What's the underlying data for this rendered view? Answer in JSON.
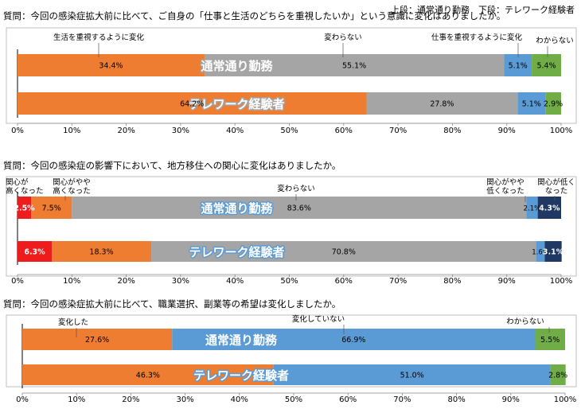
{
  "header_note": "上段：通常通り勤務　下段：テレワーク経験者",
  "colors": {
    "red": "#ee1c1c",
    "orange": "#ee7d31",
    "gray": "#a5a5a5",
    "blue": "#5b9bd5",
    "green": "#70ad47",
    "navy": "#203864",
    "bar_label": "#ffffff",
    "panel_border": "#bfbfbf"
  },
  "chart_data": [
    {
      "type": "bar",
      "orientation": "horizontal",
      "stacked": "percent",
      "title": "質問：今回の感染症拡大前に比べて、ご自身の「仕事と生活のどちらを重視したいか」という意識に変化はありましたか。",
      "categories": [
        "通常通り勤務",
        "テレワーク経験者"
      ],
      "series": [
        {
          "name": "生活を重視するように変化",
          "color": "orange",
          "values": [
            34.4,
            64.2
          ],
          "labels": [
            "34.4%",
            "64.2%"
          ]
        },
        {
          "name": "変わらない",
          "color": "gray",
          "values": [
            55.1,
            27.8
          ],
          "labels": [
            "55.1%",
            "27.8%"
          ]
        },
        {
          "name": "仕事を重視するように変化",
          "color": "blue",
          "values": [
            5.1,
            5.1
          ],
          "labels": [
            "5.1%",
            "5.1%"
          ]
        },
        {
          "name": "わからない",
          "color": "green",
          "values": [
            5.4,
            2.9
          ],
          "labels": [
            "5.4%",
            "2.9%"
          ]
        }
      ],
      "xlim": [
        0,
        100
      ],
      "ticks": [
        "0%",
        "10%",
        "20%",
        "30%",
        "40%",
        "50%",
        "60%",
        "70%",
        "80%",
        "90%",
        "100%"
      ],
      "legend": "callouts"
    },
    {
      "type": "bar",
      "orientation": "horizontal",
      "stacked": "percent",
      "title": "質問：今回の感染症の影響下において、地方移住への関心に変化はありましたか。",
      "categories": [
        "通常通り勤務",
        "テレワーク経験者"
      ],
      "series": [
        {
          "name": "関心が高くなった",
          "name_lines": [
            "関心が",
            "高くなった"
          ],
          "color": "red",
          "values": [
            2.5,
            6.3
          ],
          "labels": [
            "2.5%",
            "6.3%"
          ]
        },
        {
          "name": "関心がやや高くなった",
          "name_lines": [
            "関心がやや",
            "高くなった"
          ],
          "color": "orange",
          "values": [
            7.5,
            18.3
          ],
          "labels": [
            "7.5%",
            "18.3%"
          ]
        },
        {
          "name": "変わらない",
          "name_lines": [
            "変わらない"
          ],
          "color": "gray",
          "values": [
            83.6,
            70.8
          ],
          "labels": [
            "83.6%",
            "70.8%"
          ]
        },
        {
          "name": "関心がやや低くなった",
          "name_lines": [
            "関心がやや",
            "低くなった"
          ],
          "color": "blue",
          "values": [
            2.1,
            1.6
          ],
          "labels": [
            "2.1%",
            "1.6%"
          ]
        },
        {
          "name": "関心が低くなった",
          "name_lines": [
            "関心が低く",
            "なった"
          ],
          "color": "navy",
          "values": [
            4.3,
            3.1
          ],
          "labels": [
            "4.3%",
            "3.1%"
          ]
        }
      ],
      "xlim": [
        0,
        100
      ],
      "ticks": [
        "0%",
        "10%",
        "20%",
        "30%",
        "40%",
        "50%",
        "60%",
        "70%",
        "80%",
        "90%",
        "100%"
      ],
      "legend": "callouts"
    },
    {
      "type": "bar",
      "orientation": "horizontal",
      "stacked": "percent",
      "title": "質問：今回の感染症拡大前に比べて、職業選択、副業等の希望は変化しましたか。",
      "categories": [
        "通常通り勤務",
        "テレワーク経験者"
      ],
      "series": [
        {
          "name": "変化した",
          "color": "orange",
          "values": [
            27.6,
            46.3
          ],
          "labels": [
            "27.6%",
            "46.3%"
          ]
        },
        {
          "name": "変化していない",
          "color": "blue",
          "values": [
            66.9,
            51.0
          ],
          "labels": [
            "66.9%",
            "51.0%"
          ]
        },
        {
          "name": "わからない",
          "color": "green",
          "values": [
            5.5,
            2.8
          ],
          "labels": [
            "5.5%",
            "2.8%"
          ]
        }
      ],
      "xlim": [
        0,
        100
      ],
      "ticks": [
        "0%",
        "10%",
        "20%",
        "30%",
        "40%",
        "50%",
        "60%",
        "70%",
        "80%",
        "90%",
        "100%"
      ],
      "legend": "callouts"
    }
  ]
}
